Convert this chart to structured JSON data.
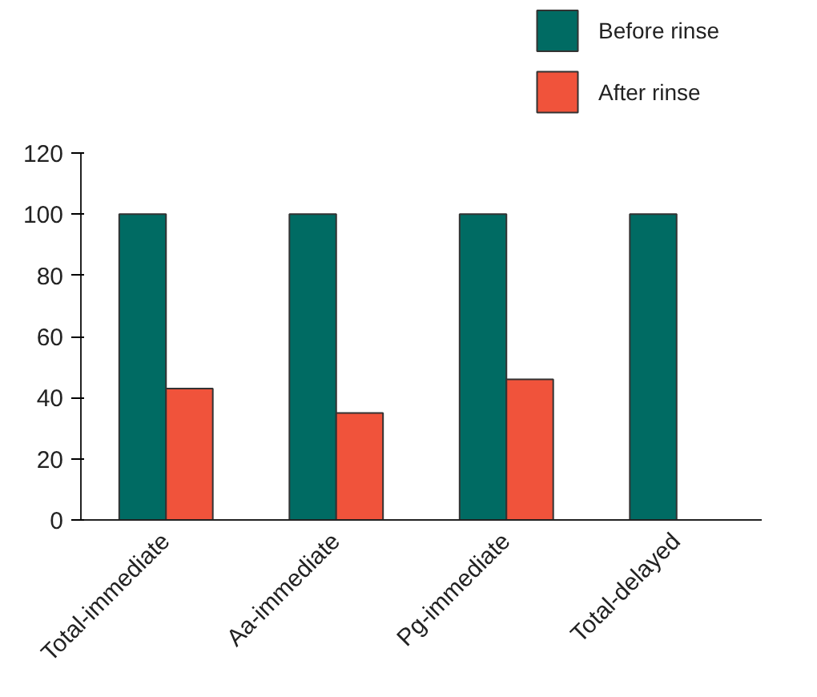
{
  "chart_data": {
    "type": "bar",
    "categories": [
      "Total-immediate",
      "Aa-immediate",
      "Pg-immediate",
      "Total-delayed"
    ],
    "series": [
      {
        "name": "Before rinse",
        "color": "#006b63",
        "values": [
          100,
          100,
          100,
          100
        ]
      },
      {
        "name": "After rinse",
        "color": "#f0533b",
        "values": [
          43,
          35,
          46,
          null
        ]
      }
    ],
    "ylim": [
      0,
      120
    ],
    "yticks": [
      0,
      20,
      40,
      60,
      80,
      100,
      120
    ],
    "grid": false,
    "legend": "top right"
  }
}
